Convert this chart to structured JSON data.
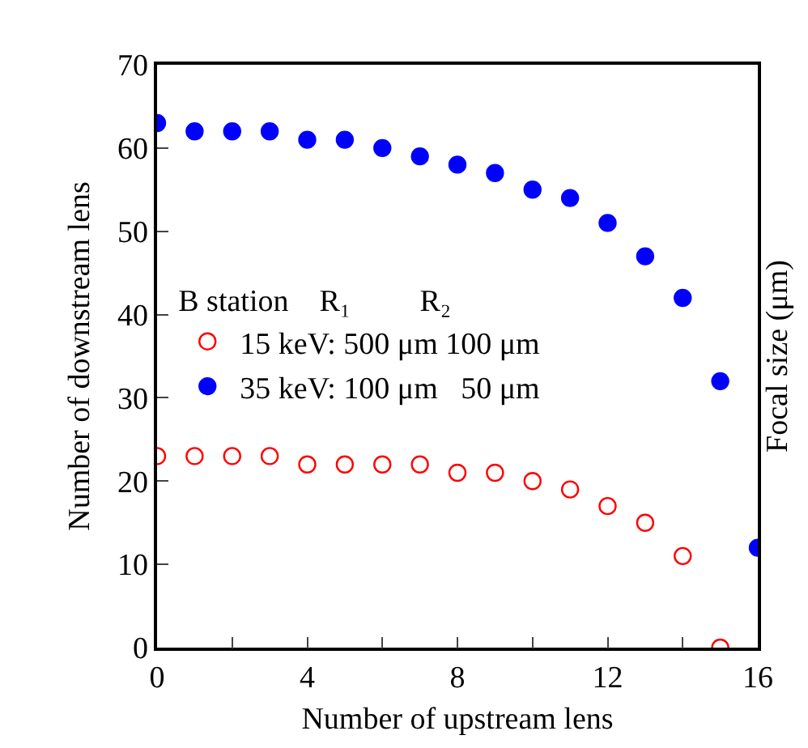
{
  "chart_data": {
    "type": "scatter",
    "xlabel": "Number of upstream lens",
    "ylabel": "Number of downstream lens",
    "y2label": "Focal size (μm)",
    "legend_title": "B station    R₁         R₂",
    "legend": "left",
    "grid": false,
    "x": [
      0,
      1,
      2,
      3,
      4,
      5,
      6,
      7,
      8,
      9,
      10,
      11,
      12,
      13,
      14,
      15,
      16
    ],
    "xlim": [
      0,
      16
    ],
    "xticks": [
      0,
      {
        "value": 2,
        "label": null
      },
      4,
      {
        "value": 6,
        "label": null
      },
      8,
      {
        "value": 10,
        "label": null
      },
      12,
      {
        "value": 14,
        "label": null
      },
      16
    ],
    "ylim": [
      0,
      70
    ],
    "yticks": [
      0,
      10,
      20,
      30,
      40,
      50,
      60,
      70
    ],
    "series": [
      {
        "name": "15 keV: 500 μm 100 μm",
        "color": "#ff0000",
        "marker": "circle-open",
        "values": [
          23,
          23,
          23,
          23,
          22,
          22,
          22,
          22,
          21,
          21,
          20,
          19,
          17,
          15,
          11,
          0,
          null
        ]
      },
      {
        "name": "35 keV: 100 μm   50 μm",
        "color": "#0000ff",
        "marker": "circle",
        "values": [
          63,
          62,
          62,
          62,
          61,
          61,
          60,
          59,
          58,
          57,
          55,
          54,
          51,
          47,
          42,
          32,
          12
        ]
      }
    ]
  }
}
